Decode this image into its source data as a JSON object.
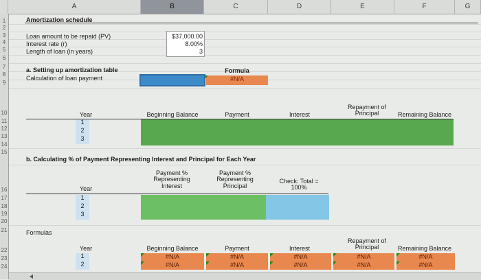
{
  "columns": [
    "A",
    "B",
    "C",
    "D",
    "E",
    "F",
    "G"
  ],
  "rows": [
    "1",
    "2",
    "3",
    "4",
    "5",
    "6",
    "7",
    "8",
    "9",
    "10",
    "11",
    "12",
    "13",
    "14",
    "15",
    "16",
    "17",
    "18",
    "19",
    "20",
    "21",
    "22",
    "23",
    "24"
  ],
  "title": "Amortization schedule",
  "inputs": {
    "pv_label": "Loan amount to be repaid (PV)",
    "rate_label": "Interest rate  (r)",
    "length_label": "Length of loan (in years)",
    "pv_value": "$37,000.00",
    "rate_value": "8.00%",
    "length_value": "3"
  },
  "section_a": {
    "heading": "a.  Setting up amortization table",
    "calc_label": "Calculation of loan payment",
    "formula_header": "Formula",
    "formula_value": "#N/A"
  },
  "table1": {
    "headers": [
      "Year",
      "Beginning Balance",
      "Payment",
      "Interest",
      "Repayment of Principal",
      "Remaining Balance"
    ],
    "years": [
      "1",
      "2",
      "3"
    ]
  },
  "section_b": {
    "heading": "b.  Calculating % of Payment Representing Interest and Principal for Each Year",
    "headers": [
      "Year",
      "Payment % Representing Interest",
      "Payment % Representing Principal",
      "Check:  Total = 100%"
    ],
    "years": [
      "1",
      "2",
      "3"
    ]
  },
  "formulas": {
    "label": "Formulas",
    "headers": [
      "Year",
      "Beginning Balance",
      "Payment",
      "Interest",
      "Repayment of Principal",
      "Remaining Balance"
    ],
    "years": [
      "1",
      "2"
    ],
    "row1": [
      "#N/A",
      "#N/A",
      "#N/A",
      "#N/A",
      "#N/A"
    ],
    "row2": [
      "#N/A",
      "#N/A",
      "#N/A",
      "#N/A",
      "#N/A"
    ]
  }
}
